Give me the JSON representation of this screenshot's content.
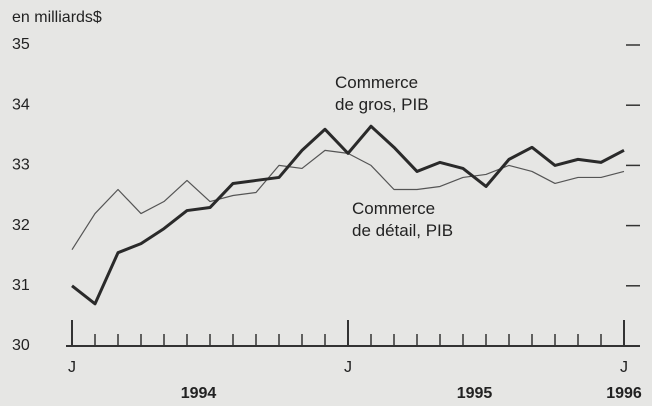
{
  "chart_data": {
    "type": "line",
    "ylabel": "en milliards$",
    "categories": [
      "J",
      null,
      null,
      null,
      null,
      null,
      null,
      null,
      null,
      null,
      null,
      null,
      "J",
      null,
      null,
      null,
      null,
      null,
      null,
      null,
      null,
      null,
      null,
      null,
      "J"
    ],
    "category_groups": [
      {
        "label": "1994",
        "start": 0,
        "end": 11
      },
      {
        "label": "1995",
        "start": 12,
        "end": 23
      },
      {
        "label": "1996",
        "start": 24,
        "end": 24
      }
    ],
    "ylim": [
      30,
      35
    ],
    "yticks": [
      30,
      31,
      32,
      33,
      34,
      35
    ],
    "series": [
      {
        "name": "Commerce\nde gros, PIB",
        "color": "#2a2a2a",
        "width": 3,
        "values": [
          31.0,
          30.7,
          31.55,
          31.7,
          31.95,
          32.25,
          32.3,
          32.7,
          32.75,
          32.8,
          33.25,
          33.6,
          33.2,
          33.65,
          33.3,
          32.9,
          33.05,
          32.95,
          32.65,
          33.1,
          33.3,
          33.0,
          33.1,
          33.05,
          33.25
        ]
      },
      {
        "name": "Commerce\nde détail, PIB",
        "color": "#555555",
        "width": 1.2,
        "values": [
          31.6,
          32.2,
          32.6,
          32.2,
          32.4,
          32.75,
          32.4,
          32.5,
          32.55,
          33.0,
          32.95,
          33.25,
          33.2,
          33.0,
          32.6,
          32.6,
          32.65,
          32.8,
          32.85,
          33.0,
          32.9,
          32.7,
          32.8,
          32.8,
          32.9
        ]
      }
    ]
  }
}
